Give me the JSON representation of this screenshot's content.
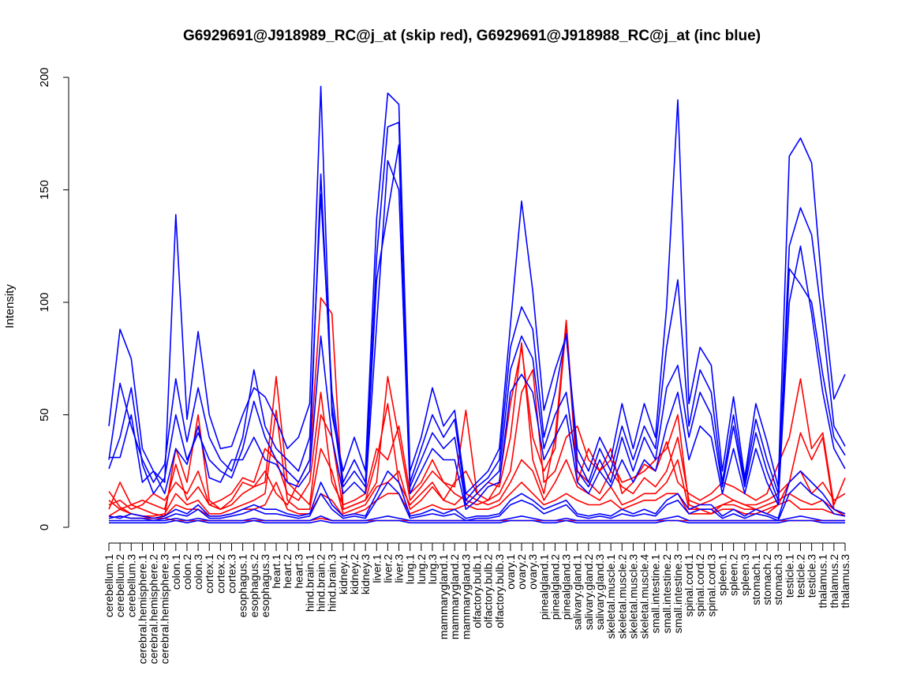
{
  "chart_data": {
    "type": "line",
    "title": "G6929691@J918989_RC@j_at (skip red), G6929691@J918988_RC@j_at (inc blue)",
    "ylabel": "Intensity",
    "xlabel": "",
    "ylim": [
      0,
      200
    ],
    "yticks": [
      0,
      50,
      100,
      150,
      200
    ],
    "grid": false,
    "legend": "none",
    "categories": [
      "cerebellum.1",
      "cerebellum.2",
      "cerebellum.3",
      "cerebral.hemisphere.1",
      "cerebral.hemisphere.2",
      "cerebral.hemisphere.3",
      "colon.1",
      "colon.2",
      "colon.3",
      "cortex.1",
      "cortex.2",
      "cortex.3",
      "esophagus.1",
      "esophagus.2",
      "esophagus.3",
      "heart.1",
      "heart.2",
      "heart.3",
      "hind.brain.1",
      "hind.brain.2",
      "hind.brain.3",
      "kidney.1",
      "kidney.2",
      "kidney.3",
      "liver.1",
      "liver.2",
      "liver.3",
      "lung.1",
      "lung.2",
      "lung.3",
      "mammarygland.1",
      "mammarygland.2",
      "mammarygland.3",
      "olfactory.bulb.1",
      "olfactory.bulb.2",
      "olfactory.bulb.3",
      "ovary.1",
      "ovary.2",
      "ovary.3",
      "pinealgland.1",
      "pinealgland.2",
      "pinealgland.3",
      "salivary.gland.1",
      "salivary.gland.2",
      "salivary.gland.3",
      "skeletal.muscle.1",
      "skeletal.muscle.2",
      "skeletal.muscle.3",
      "skeletal.muscle.4",
      "small.intestine.1",
      "small.intestine.2",
      "small.intestine.3",
      "spinal.cord.1",
      "spinal.cord.2",
      "spinal.cord.3",
      "spleen.1",
      "spleen.2",
      "spleen.3",
      "stomach.1",
      "stomach.2",
      "stomach.3",
      "testicle.1",
      "testicle.2",
      "testicle.3",
      "thalamus.1",
      "thalamus.2",
      "thalamus.3"
    ],
    "series_colors": {
      "skip": "#ff0000",
      "inc": "#0000ff"
    },
    "series": [
      {
        "group": "skip",
        "values": [
          16,
          9,
          6,
          5,
          4,
          4,
          3,
          3,
          3,
          3,
          3,
          3,
          3,
          3,
          3,
          3,
          3,
          3,
          3,
          4,
          3,
          3,
          3,
          3,
          3,
          3,
          3,
          3,
          3,
          3,
          3,
          3,
          3,
          3,
          3,
          3,
          3,
          3,
          3,
          3,
          3,
          3,
          3,
          3,
          3,
          3,
          3,
          3,
          3,
          3,
          3,
          3,
          3,
          3,
          3,
          3,
          3,
          3,
          3,
          3,
          3,
          3,
          3,
          3,
          3,
          3,
          3
        ]
      },
      {
        "group": "skip",
        "values": [
          8,
          20,
          10,
          8,
          6,
          5,
          35,
          20,
          50,
          12,
          8,
          12,
          20,
          18,
          25,
          15,
          10,
          20,
          30,
          102,
          95,
          8,
          10,
          12,
          30,
          55,
          20,
          10,
          15,
          20,
          12,
          20,
          25,
          15,
          12,
          20,
          55,
          80,
          40,
          25,
          35,
          90,
          20,
          35,
          25,
          30,
          20,
          22,
          25,
          30,
          35,
          50,
          10,
          8,
          6,
          10,
          12,
          10,
          8,
          6,
          10,
          20,
          42,
          30,
          40,
          8,
          5
        ]
      },
      {
        "group": "skip",
        "values": [
          12,
          8,
          10,
          12,
          10,
          8,
          28,
          12,
          18,
          10,
          12,
          15,
          22,
          20,
          35,
          30,
          15,
          12,
          20,
          60,
          20,
          10,
          12,
          15,
          35,
          30,
          45,
          15,
          20,
          30,
          20,
          15,
          12,
          10,
          12,
          15,
          25,
          60,
          70,
          20,
          25,
          40,
          45,
          30,
          25,
          35,
          15,
          20,
          28,
          25,
          38,
          20,
          15,
          12,
          15,
          20,
          18,
          15,
          12,
          15,
          28,
          40,
          66,
          35,
          42,
          10,
          22
        ]
      },
      {
        "group": "skip",
        "values": [
          10,
          12,
          8,
          10,
          15,
          12,
          20,
          15,
          25,
          10,
          8,
          10,
          15,
          18,
          20,
          67,
          20,
          15,
          10,
          50,
          40,
          8,
          10,
          12,
          20,
          67,
          40,
          12,
          18,
          25,
          20,
          18,
          52,
          15,
          20,
          18,
          40,
          82,
          30,
          15,
          40,
          92,
          25,
          20,
          15,
          25,
          18,
          15,
          22,
          18,
          25,
          40,
          12,
          10,
          12,
          15,
          12,
          10,
          10,
          12,
          15,
          20,
          25,
          15,
          20,
          12,
          15
        ]
      },
      {
        "group": "skip",
        "values": [
          5,
          8,
          6,
          5,
          5,
          6,
          15,
          10,
          12,
          6,
          6,
          8,
          10,
          12,
          15,
          52,
          12,
          8,
          8,
          35,
          25,
          6,
          8,
          10,
          18,
          20,
          25,
          8,
          12,
          18,
          12,
          10,
          15,
          12,
          10,
          12,
          20,
          30,
          25,
          12,
          20,
          30,
          18,
          15,
          12,
          18,
          10,
          12,
          15,
          15,
          20,
          30,
          8,
          8,
          8,
          10,
          10,
          8,
          8,
          10,
          12,
          15,
          12,
          10,
          12,
          8,
          6
        ]
      },
      {
        "group": "skip",
        "values": [
          4,
          5,
          4,
          4,
          4,
          5,
          10,
          8,
          8,
          5,
          5,
          6,
          8,
          8,
          10,
          20,
          8,
          6,
          6,
          15,
          12,
          5,
          6,
          8,
          12,
          15,
          15,
          6,
          8,
          10,
          8,
          8,
          10,
          8,
          8,
          10,
          15,
          20,
          15,
          10,
          12,
          15,
          12,
          10,
          10,
          12,
          8,
          10,
          12,
          12,
          15,
          15,
          6,
          6,
          6,
          8,
          8,
          6,
          6,
          8,
          10,
          12,
          8,
          8,
          8,
          6,
          5
        ]
      },
      {
        "group": "inc",
        "values": [
          45,
          88,
          75,
          35,
          25,
          20,
          139,
          48,
          87,
          50,
          35,
          36,
          50,
          62,
          58,
          48,
          35,
          40,
          55,
          196,
          50,
          25,
          40,
          25,
          137,
          193,
          188,
          25,
          40,
          62,
          45,
          52,
          15,
          20,
          25,
          35,
          90,
          145,
          105,
          52,
          70,
          85,
          35,
          25,
          40,
          30,
          55,
          35,
          55,
          40,
          98,
          190,
          55,
          80,
          72,
          25,
          58,
          22,
          55,
          38,
          18,
          165,
          173,
          162,
          103,
          57,
          68
        ]
      },
      {
        "group": "inc",
        "values": [
          30,
          64,
          45,
          30,
          20,
          28,
          66,
          38,
          62,
          40,
          30,
          25,
          40,
          70,
          45,
          35,
          30,
          25,
          40,
          148,
          60,
          20,
          30,
          20,
          120,
          178,
          180,
          20,
          35,
          50,
          40,
          48,
          12,
          18,
          22,
          30,
          80,
          98,
          88,
          40,
          60,
          86,
          30,
          20,
          35,
          25,
          45,
          30,
          45,
          35,
          80,
          110,
          45,
          70,
          60,
          20,
          50,
          20,
          48,
          30,
          15,
          125,
          142,
          130,
          90,
          45,
          36
        ]
      },
      {
        "group": "inc",
        "values": [
          26,
          40,
          62,
          28,
          15,
          22,
          50,
          30,
          42,
          30,
          25,
          22,
          35,
          56,
          40,
          30,
          25,
          20,
          30,
          157,
          54,
          18,
          25,
          18,
          110,
          140,
          170,
          18,
          30,
          42,
          35,
          40,
          10,
          15,
          20,
          25,
          70,
          85,
          75,
          35,
          50,
          60,
          25,
          18,
          30,
          20,
          40,
          25,
          40,
          30,
          62,
          72,
          40,
          60,
          50,
          18,
          45,
          18,
          42,
          25,
          12,
          115,
          108,
          100,
          68,
          40,
          32
        ]
      },
      {
        "group": "inc",
        "values": [
          31,
          31,
          50,
          20,
          25,
          15,
          35,
          28,
          45,
          22,
          20,
          30,
          30,
          40,
          30,
          28,
          20,
          18,
          25,
          85,
          40,
          15,
          20,
          15,
          90,
          163,
          150,
          15,
          25,
          35,
          30,
          30,
          8,
          12,
          18,
          20,
          60,
          68,
          60,
          30,
          40,
          50,
          20,
          15,
          25,
          18,
          30,
          20,
          30,
          25,
          45,
          60,
          30,
          45,
          40,
          15,
          35,
          15,
          35,
          20,
          10,
          100,
          125,
          95,
          60,
          35,
          26
        ]
      },
      {
        "group": "inc",
        "values": [
          3,
          3,
          3,
          3,
          3,
          3,
          4,
          3,
          4,
          3,
          3,
          3,
          3,
          4,
          3,
          3,
          3,
          3,
          3,
          5,
          3,
          3,
          3,
          3,
          4,
          5,
          4,
          3,
          3,
          3,
          3,
          3,
          3,
          3,
          3,
          3,
          4,
          5,
          4,
          3,
          3,
          4,
          3,
          3,
          3,
          3,
          3,
          3,
          3,
          3,
          4,
          5,
          3,
          3,
          3,
          3,
          3,
          3,
          3,
          3,
          3,
          4,
          5,
          4,
          3,
          3,
          3
        ]
      },
      {
        "group": "inc",
        "values": [
          2,
          2,
          2,
          2,
          2,
          2,
          3,
          2,
          3,
          2,
          2,
          2,
          2,
          3,
          2,
          2,
          2,
          2,
          2,
          3,
          2,
          2,
          2,
          2,
          3,
          3,
          3,
          2,
          2,
          2,
          2,
          2,
          2,
          2,
          2,
          2,
          3,
          3,
          3,
          2,
          2,
          3,
          2,
          2,
          2,
          2,
          2,
          2,
          2,
          2,
          3,
          3,
          2,
          2,
          2,
          2,
          2,
          2,
          2,
          2,
          2,
          3,
          3,
          3,
          2,
          2,
          2
        ]
      },
      {
        "group": "inc",
        "values": [
          5,
          4,
          6,
          5,
          4,
          5,
          8,
          6,
          10,
          5,
          5,
          6,
          8,
          10,
          8,
          8,
          6,
          5,
          6,
          20,
          10,
          5,
          6,
          5,
          15,
          25,
          20,
          5,
          6,
          8,
          6,
          8,
          4,
          5,
          5,
          6,
          12,
          15,
          12,
          8,
          10,
          12,
          6,
          5,
          6,
          5,
          8,
          6,
          8,
          6,
          12,
          15,
          8,
          10,
          10,
          5,
          8,
          5,
          8,
          6,
          4,
          20,
          25,
          20,
          15,
          8,
          6
        ]
      },
      {
        "group": "inc",
        "values": [
          4,
          5,
          4,
          4,
          3,
          4,
          6,
          5,
          8,
          4,
          4,
          5,
          6,
          8,
          6,
          6,
          5,
          4,
          5,
          15,
          8,
          4,
          5,
          4,
          12,
          20,
          15,
          4,
          5,
          6,
          5,
          6,
          3,
          4,
          4,
          5,
          10,
          12,
          10,
          6,
          8,
          10,
          5,
          4,
          5,
          4,
          6,
          5,
          6,
          5,
          10,
          12,
          6,
          8,
          8,
          4,
          6,
          4,
          6,
          5,
          3,
          15,
          20,
          15,
          12,
          6,
          5
        ]
      }
    ]
  }
}
